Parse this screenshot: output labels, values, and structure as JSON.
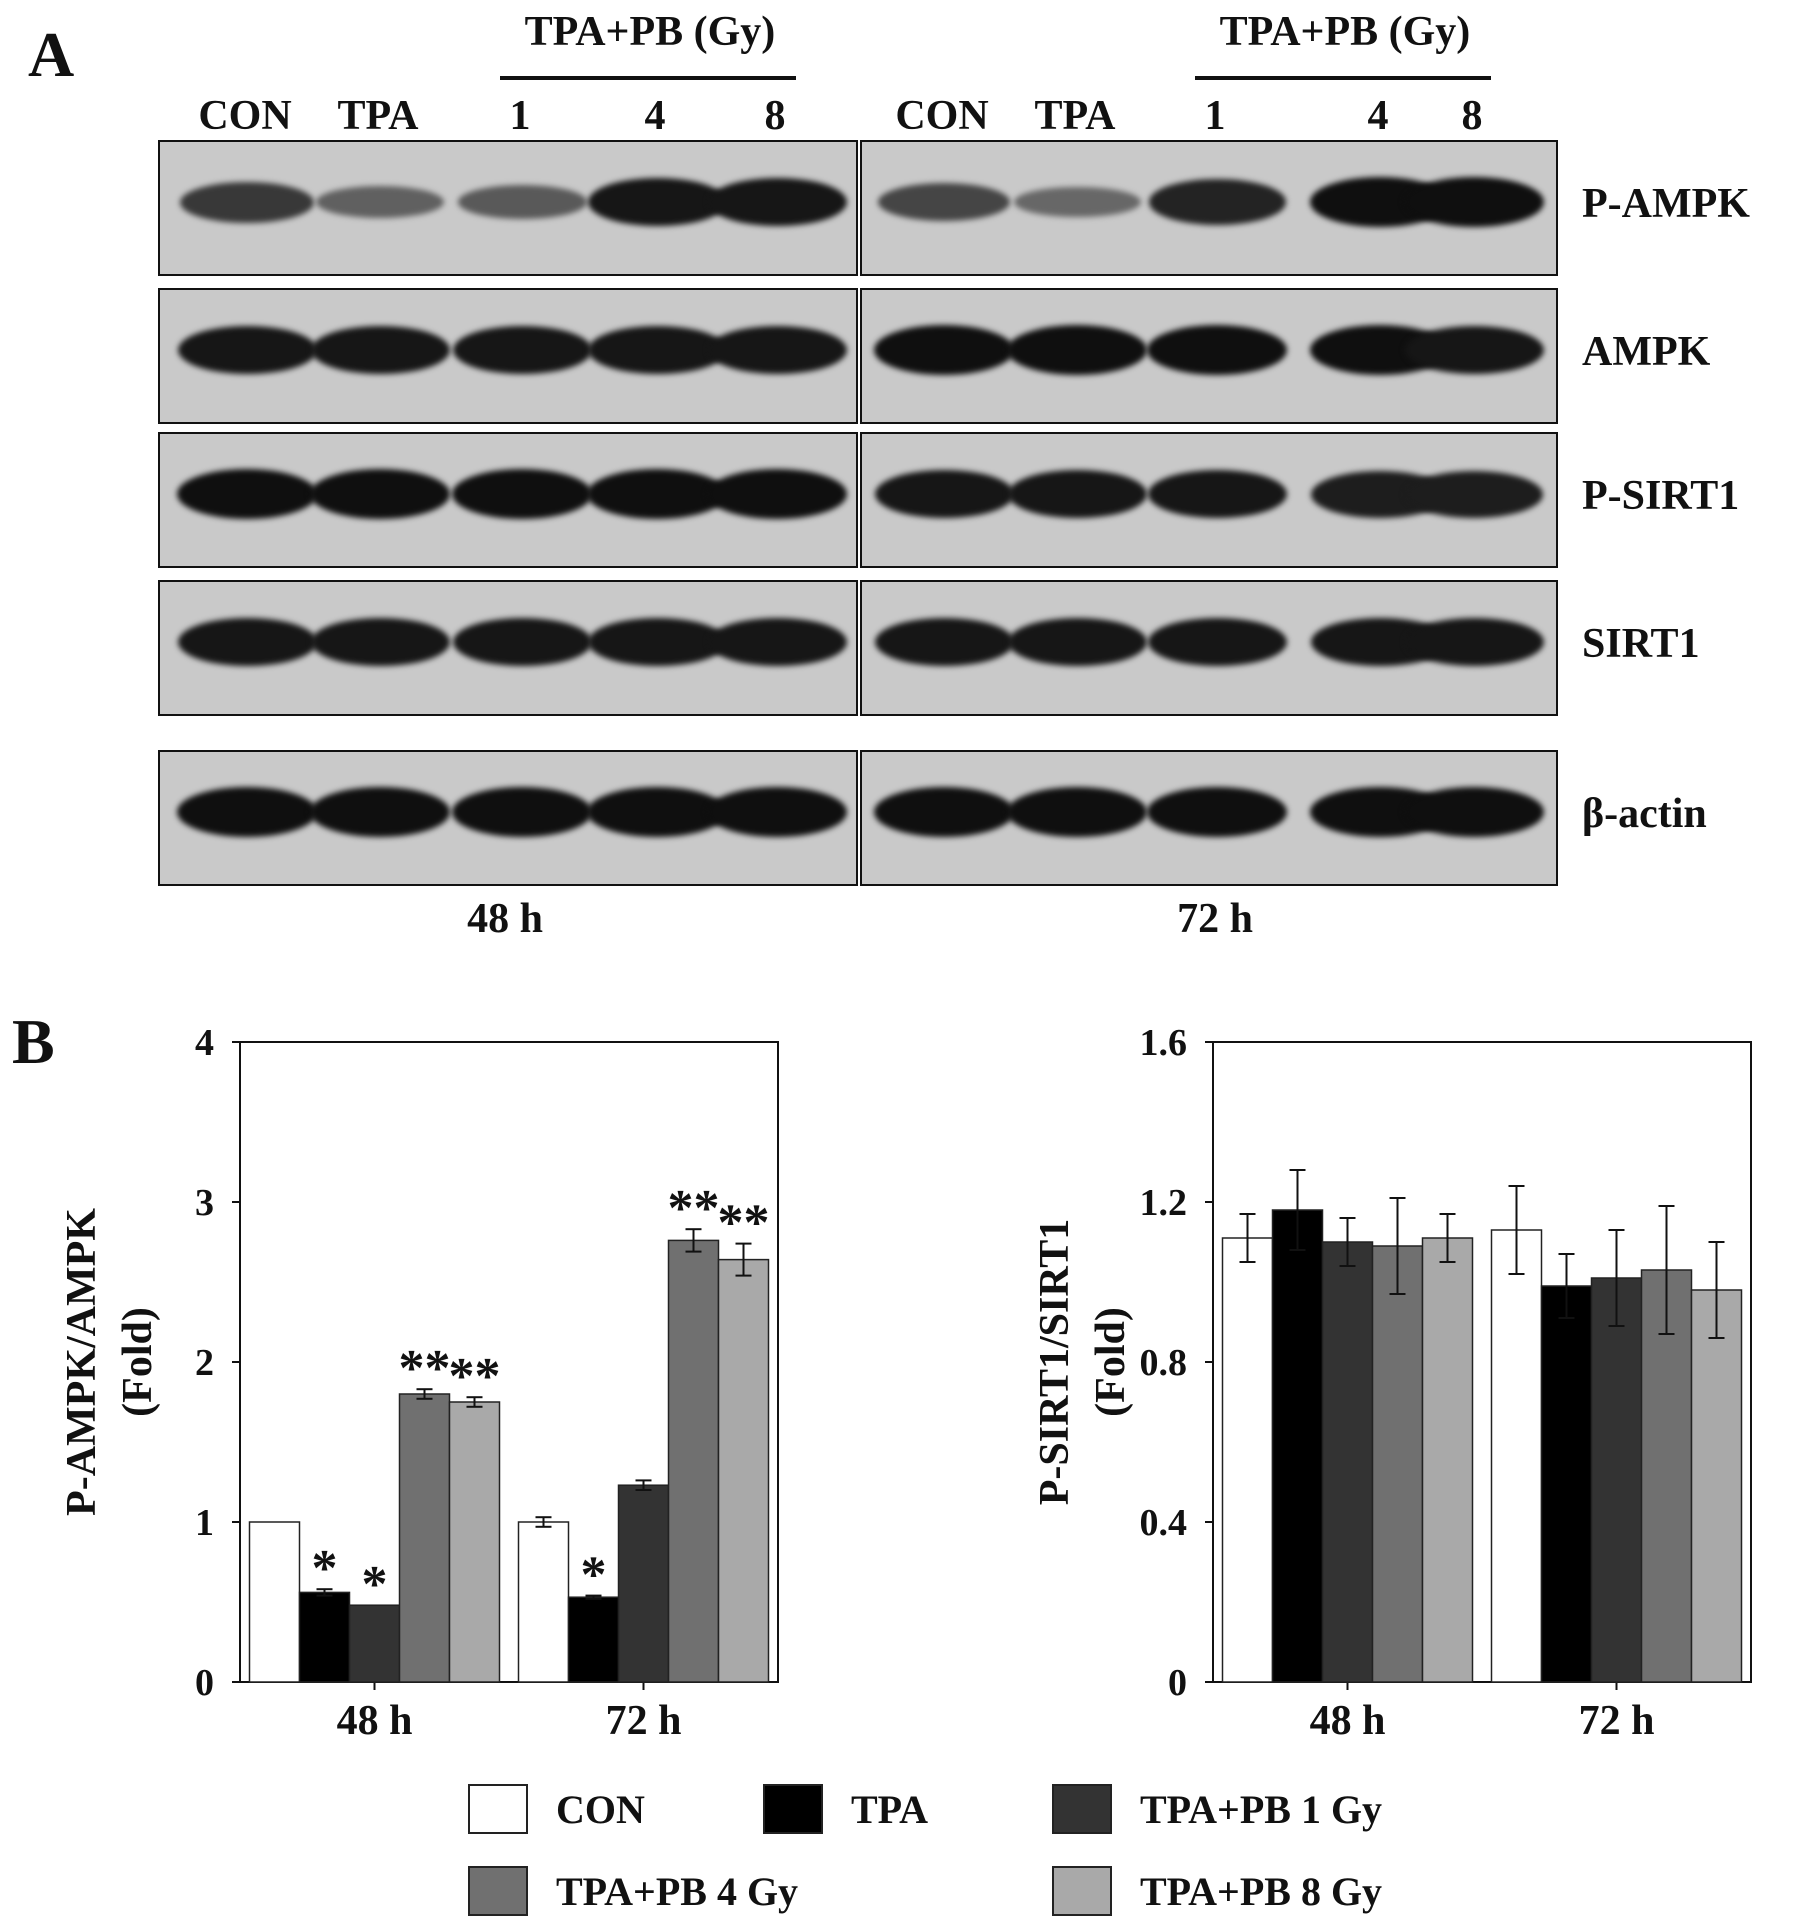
{
  "panel_a": {
    "letter": "A",
    "header_groups": [
      {
        "label": "TPA+PB (Gy)",
        "span": "left"
      },
      {
        "label": "TPA+PB (Gy)",
        "span": "right"
      }
    ],
    "lanes_left": [
      "CON",
      "TPA",
      "1",
      "4",
      "8"
    ],
    "lanes_right": [
      "CON",
      "TPA",
      "1",
      "4",
      "8"
    ],
    "rows": [
      {
        "label": "P-AMPK",
        "left_intensity": [
          0.7,
          0.4,
          0.45,
          0.95,
          0.95
        ],
        "right_intensity": [
          0.6,
          0.35,
          0.85,
          1.0,
          1.0
        ]
      },
      {
        "label": "AMPK",
        "left_intensity": [
          0.95,
          0.95,
          0.95,
          0.95,
          0.95
        ],
        "right_intensity": [
          1.0,
          1.0,
          1.0,
          1.0,
          0.95
        ]
      },
      {
        "label": "P-SIRT1",
        "left_intensity": [
          1.0,
          1.0,
          1.0,
          1.0,
          1.0
        ],
        "right_intensity": [
          0.95,
          0.95,
          0.95,
          0.9,
          0.9
        ]
      },
      {
        "label": "SIRT1",
        "left_intensity": [
          0.95,
          0.95,
          0.95,
          0.95,
          0.95
        ],
        "right_intensity": [
          0.95,
          0.95,
          0.95,
          0.95,
          0.95
        ]
      },
      {
        "label": "β-actin",
        "left_intensity": [
          1.0,
          1.0,
          1.0,
          1.0,
          1.0
        ],
        "right_intensity": [
          1.0,
          1.0,
          1.0,
          1.0,
          1.0
        ]
      }
    ],
    "time_left": "48 h",
    "time_right": "72 h"
  },
  "panel_b": {
    "letter": "B"
  },
  "legend": [
    {
      "name": "CON",
      "color": "#ffffff"
    },
    {
      "name": "TPA",
      "color": "#000000"
    },
    {
      "name": "TPA+PB 1 Gy",
      "color": "#333333"
    },
    {
      "name": "TPA+PB 4 Gy",
      "color": "#707070"
    },
    {
      "name": "TPA+PB 8 Gy",
      "color": "#a9a9a9"
    }
  ],
  "chart_data": [
    {
      "type": "bar",
      "ylabel": "P-AMPK/AMPK (Fold)",
      "ylabel_lines": [
        "P-AMPK/AMPK",
        "(Fold)"
      ],
      "xlabel": "",
      "categories": [
        "48 h",
        "72 h"
      ],
      "ylim": [
        0,
        4
      ],
      "yticks": [
        "0",
        "1",
        "2",
        "3",
        "4"
      ],
      "grid": false,
      "series": [
        {
          "name": "CON",
          "values": [
            1.0,
            1.0
          ],
          "errors": [
            0.0,
            0.03
          ],
          "annotations": [
            "",
            ""
          ]
        },
        {
          "name": "TPA",
          "values": [
            0.56,
            0.53
          ],
          "errors": [
            0.02,
            0.01
          ],
          "annotations": [
            "*",
            "*"
          ]
        },
        {
          "name": "TPA+PB 1 Gy",
          "values": [
            0.48,
            1.23
          ],
          "errors": [
            0.0,
            0.03
          ],
          "annotations": [
            "*",
            ""
          ]
        },
        {
          "name": "TPA+PB 4 Gy",
          "values": [
            1.8,
            2.76
          ],
          "errors": [
            0.03,
            0.07
          ],
          "annotations": [
            "**",
            "**"
          ]
        },
        {
          "name": "TPA+PB 8 Gy",
          "values": [
            1.75,
            2.64
          ],
          "errors": [
            0.03,
            0.1
          ],
          "annotations": [
            "**",
            "**"
          ]
        }
      ]
    },
    {
      "type": "bar",
      "ylabel": "P-SIRT1/SIRT1 (Fold)",
      "ylabel_lines": [
        "P-SIRT1/SIRT1",
        "(Fold)"
      ],
      "xlabel": "",
      "categories": [
        "48 h",
        "72 h"
      ],
      "ylim": [
        0,
        1.6
      ],
      "yticks": [
        "0",
        "0.4",
        "0.8",
        "1.2",
        "1.6"
      ],
      "grid": false,
      "series": [
        {
          "name": "CON",
          "values": [
            1.11,
            1.13
          ],
          "errors": [
            0.06,
            0.11
          ],
          "annotations": [
            "",
            ""
          ]
        },
        {
          "name": "TPA",
          "values": [
            1.18,
            0.99
          ],
          "errors": [
            0.1,
            0.08
          ],
          "annotations": [
            "",
            ""
          ]
        },
        {
          "name": "TPA+PB 1 Gy",
          "values": [
            1.1,
            1.01
          ],
          "errors": [
            0.06,
            0.12
          ],
          "annotations": [
            "",
            ""
          ]
        },
        {
          "name": "TPA+PB 4 Gy",
          "values": [
            1.09,
            1.03
          ],
          "errors": [
            0.12,
            0.16
          ],
          "annotations": [
            "",
            ""
          ]
        },
        {
          "name": "TPA+PB 8 Gy",
          "values": [
            1.11,
            0.98
          ],
          "errors": [
            0.06,
            0.12
          ],
          "annotations": [
            "",
            ""
          ]
        }
      ]
    }
  ]
}
